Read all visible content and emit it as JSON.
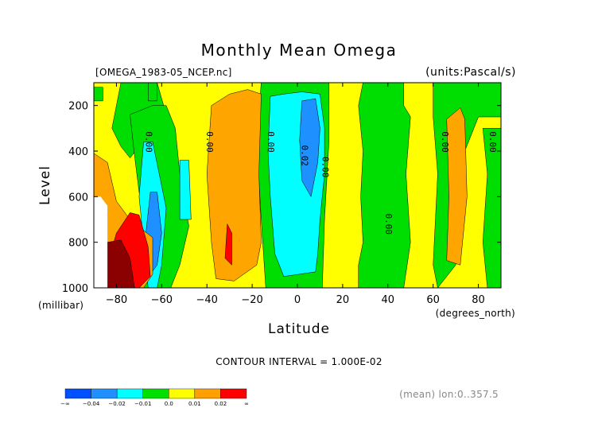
{
  "chart_data": {
    "type": "heatmap",
    "title": "Monthly Mean Omega",
    "file_label": "[OMEGA_1983-05_NCEP.nc]",
    "units_label": "(units:Pascal/s)",
    "xlabel": "Latitude",
    "ylabel": "Level",
    "x_units": "(degrees_north)",
    "y_units": "(millibar)",
    "xlim": [
      -90,
      90
    ],
    "ylim": [
      1000,
      100
    ],
    "x_ticks": [
      -80,
      -60,
      -40,
      -20,
      0,
      20,
      40,
      60,
      80
    ],
    "x_tick_labels": [
      "−80",
      "−60",
      "−40",
      "−20",
      "0",
      "20",
      "40",
      "60",
      "80"
    ],
    "y_ticks": [
      200,
      400,
      600,
      800,
      1000
    ],
    "y_tick_labels": [
      "200",
      "400",
      "600",
      "800",
      "1000"
    ],
    "contour_interval_text": "CONTOUR INTERVAL = 1.000E-02",
    "mean_note": "(mean) lon:0..357.5",
    "contour_labels": [
      {
        "text": "0.00",
        "lat": -67,
        "lev": 360
      },
      {
        "text": "0.00",
        "lat": -40,
        "lev": 360
      },
      {
        "text": "0.00",
        "lat": -13,
        "lev": 360
      },
      {
        "text": "0.02",
        "lat": 2,
        "lev": 420
      },
      {
        "text": "0.00",
        "lat": 11,
        "lev": 470
      },
      {
        "text": "0.00",
        "lat": 39,
        "lev": 720
      },
      {
        "text": "0.00",
        "lat": 64,
        "lev": 360
      },
      {
        "text": "0.00",
        "lat": 85,
        "lev": 360
      }
    ],
    "colorbar": {
      "labels": [
        "−∞",
        "−0.04",
        "−0.02",
        "−0.01",
        "0.0",
        "0.01",
        "0.02",
        "∞"
      ],
      "colors": [
        "#0050ff",
        "#2090ff",
        "#00ffff",
        "#00e000",
        "#ffff00",
        "#ffa000",
        "#ff0000"
      ]
    },
    "levels": {
      "blue": "#1e90ff",
      "cyan": "#00ffff",
      "green": "#00dd00",
      "yellow": "#ffff00",
      "orange": "#ffa500",
      "red": "#ff0000",
      "darkred": "#8b0000"
    },
    "regions": [
      {
        "level": "green",
        "poly": [
          [
            -90,
            120
          ],
          [
            -86,
            120
          ],
          [
            -86,
            180
          ],
          [
            -90,
            180
          ]
        ]
      },
      {
        "level": "green",
        "poly": [
          [
            -78,
            100
          ],
          [
            -62,
            100
          ],
          [
            -58,
            240
          ],
          [
            -64,
            320
          ],
          [
            -70,
            380
          ],
          [
            -74,
            430
          ],
          [
            -78,
            380
          ],
          [
            -82,
            300
          ],
          [
            -80,
            200
          ]
        ]
      },
      {
        "level": "green",
        "poly": [
          [
            -74,
            240
          ],
          [
            -64,
            200
          ],
          [
            -58,
            200
          ],
          [
            -54,
            300
          ],
          [
            -52,
            500
          ],
          [
            -48,
            730
          ],
          [
            -52,
            900
          ],
          [
            -56,
            1000
          ],
          [
            -68,
            1000
          ],
          [
            -66,
            800
          ],
          [
            -70,
            580
          ],
          [
            -72,
            420
          ]
        ]
      },
      {
        "level": "green",
        "poly": [
          [
            -16,
            100
          ],
          [
            14,
            100
          ],
          [
            14,
            350
          ],
          [
            12,
            700
          ],
          [
            11,
            1000
          ],
          [
            -14,
            1000
          ],
          [
            -16,
            700
          ],
          [
            -18,
            350
          ]
        ]
      },
      {
        "level": "green",
        "poly": [
          [
            -66,
            100
          ],
          [
            -62,
            100
          ],
          [
            -62,
            180
          ],
          [
            -66,
            180
          ]
        ]
      },
      {
        "level": "green",
        "poly": [
          [
            29,
            100
          ],
          [
            47,
            100
          ],
          [
            47,
            200
          ],
          [
            50,
            250
          ],
          [
            48,
            500
          ],
          [
            50,
            800
          ],
          [
            47,
            1000
          ],
          [
            27,
            1000
          ],
          [
            27,
            900
          ],
          [
            29,
            800
          ],
          [
            28,
            600
          ],
          [
            29,
            400
          ],
          [
            27,
            200
          ]
        ]
      },
      {
        "level": "green",
        "poly": [
          [
            60,
            100
          ],
          [
            90,
            100
          ],
          [
            90,
            250
          ],
          [
            80,
            250
          ],
          [
            74,
            400
          ],
          [
            72,
            600
          ],
          [
            70,
            900
          ],
          [
            62,
            1000
          ],
          [
            60,
            900
          ],
          [
            62,
            500
          ],
          [
            60,
            250
          ]
        ]
      },
      {
        "level": "green",
        "poly": [
          [
            82,
            300
          ],
          [
            90,
            300
          ],
          [
            90,
            1000
          ],
          [
            84,
            1000
          ],
          [
            82,
            800
          ],
          [
            84,
            500
          ]
        ]
      },
      {
        "level": "cyan",
        "poly": [
          [
            -12,
            160
          ],
          [
            -6,
            150
          ],
          [
            2,
            140
          ],
          [
            10,
            150
          ],
          [
            12,
            300
          ],
          [
            12,
            500
          ],
          [
            10,
            700
          ],
          [
            9,
            850
          ],
          [
            8,
            930
          ],
          [
            -6,
            950
          ],
          [
            -10,
            850
          ],
          [
            -12,
            600
          ],
          [
            -13,
            400
          ]
        ]
      },
      {
        "level": "cyan",
        "poly": [
          [
            -68,
            360
          ],
          [
            -64,
            360
          ],
          [
            -58,
            650
          ],
          [
            -60,
            900
          ],
          [
            -62,
            1000
          ],
          [
            -66,
            1000
          ],
          [
            -70,
            600
          ]
        ]
      },
      {
        "level": "cyan",
        "poly": [
          [
            -52,
            440
          ],
          [
            -48,
            440
          ],
          [
            -47,
            700
          ],
          [
            -52,
            700
          ]
        ]
      },
      {
        "level": "blue",
        "poly": [
          [
            2,
            180
          ],
          [
            8,
            170
          ],
          [
            10,
            300
          ],
          [
            9,
            450
          ],
          [
            6,
            600
          ],
          [
            2,
            530
          ],
          [
            1,
            350
          ]
        ]
      },
      {
        "level": "blue",
        "poly": [
          [
            -65,
            580
          ],
          [
            -62,
            580
          ],
          [
            -60,
            760
          ],
          [
            -62,
            900
          ],
          [
            -65,
            940
          ],
          [
            -67,
            760
          ]
        ]
      },
      {
        "level": "orange",
        "poly": [
          [
            -38,
            200
          ],
          [
            -30,
            150
          ],
          [
            -22,
            130
          ],
          [
            -16,
            150
          ],
          [
            -17,
            500
          ],
          [
            -16,
            800
          ],
          [
            -18,
            900
          ],
          [
            -28,
            970
          ],
          [
            -36,
            960
          ],
          [
            -38,
            800
          ],
          [
            -40,
            500
          ]
        ]
      },
      {
        "level": "orange",
        "poly": [
          [
            66,
            260
          ],
          [
            72,
            210
          ],
          [
            74,
            260
          ],
          [
            75,
            600
          ],
          [
            72,
            900
          ],
          [
            66,
            880
          ],
          [
            67,
            600
          ]
        ]
      },
      {
        "level": "orange",
        "poly": [
          [
            -90,
            410
          ],
          [
            -84,
            450
          ],
          [
            -80,
            620
          ],
          [
            -74,
            700
          ],
          [
            -64,
            780
          ],
          [
            -64,
            940
          ],
          [
            -68,
            1000
          ],
          [
            -90,
            1000
          ]
        ]
      },
      {
        "level": "red",
        "poly": [
          [
            -74,
            670
          ],
          [
            -70,
            680
          ],
          [
            -66,
            820
          ],
          [
            -65,
            950
          ],
          [
            -70,
            1000
          ],
          [
            -82,
            1000
          ],
          [
            -84,
            900
          ],
          [
            -80,
            760
          ]
        ]
      },
      {
        "level": "red",
        "poly": [
          [
            -31,
            720
          ],
          [
            -29,
            760
          ],
          [
            -29,
            900
          ],
          [
            -32,
            870
          ]
        ]
      },
      {
        "level": "darkred",
        "poly": [
          [
            -84,
            800
          ],
          [
            -78,
            790
          ],
          [
            -74,
            870
          ],
          [
            -72,
            1000
          ],
          [
            -86,
            1000
          ]
        ]
      }
    ],
    "missing_regions": [
      {
        "poly": [
          [
            -90,
            600
          ],
          [
            -87,
            600
          ],
          [
            -84,
            640
          ],
          [
            -84,
            1000
          ],
          [
            -90,
            1000
          ]
        ]
      }
    ]
  }
}
